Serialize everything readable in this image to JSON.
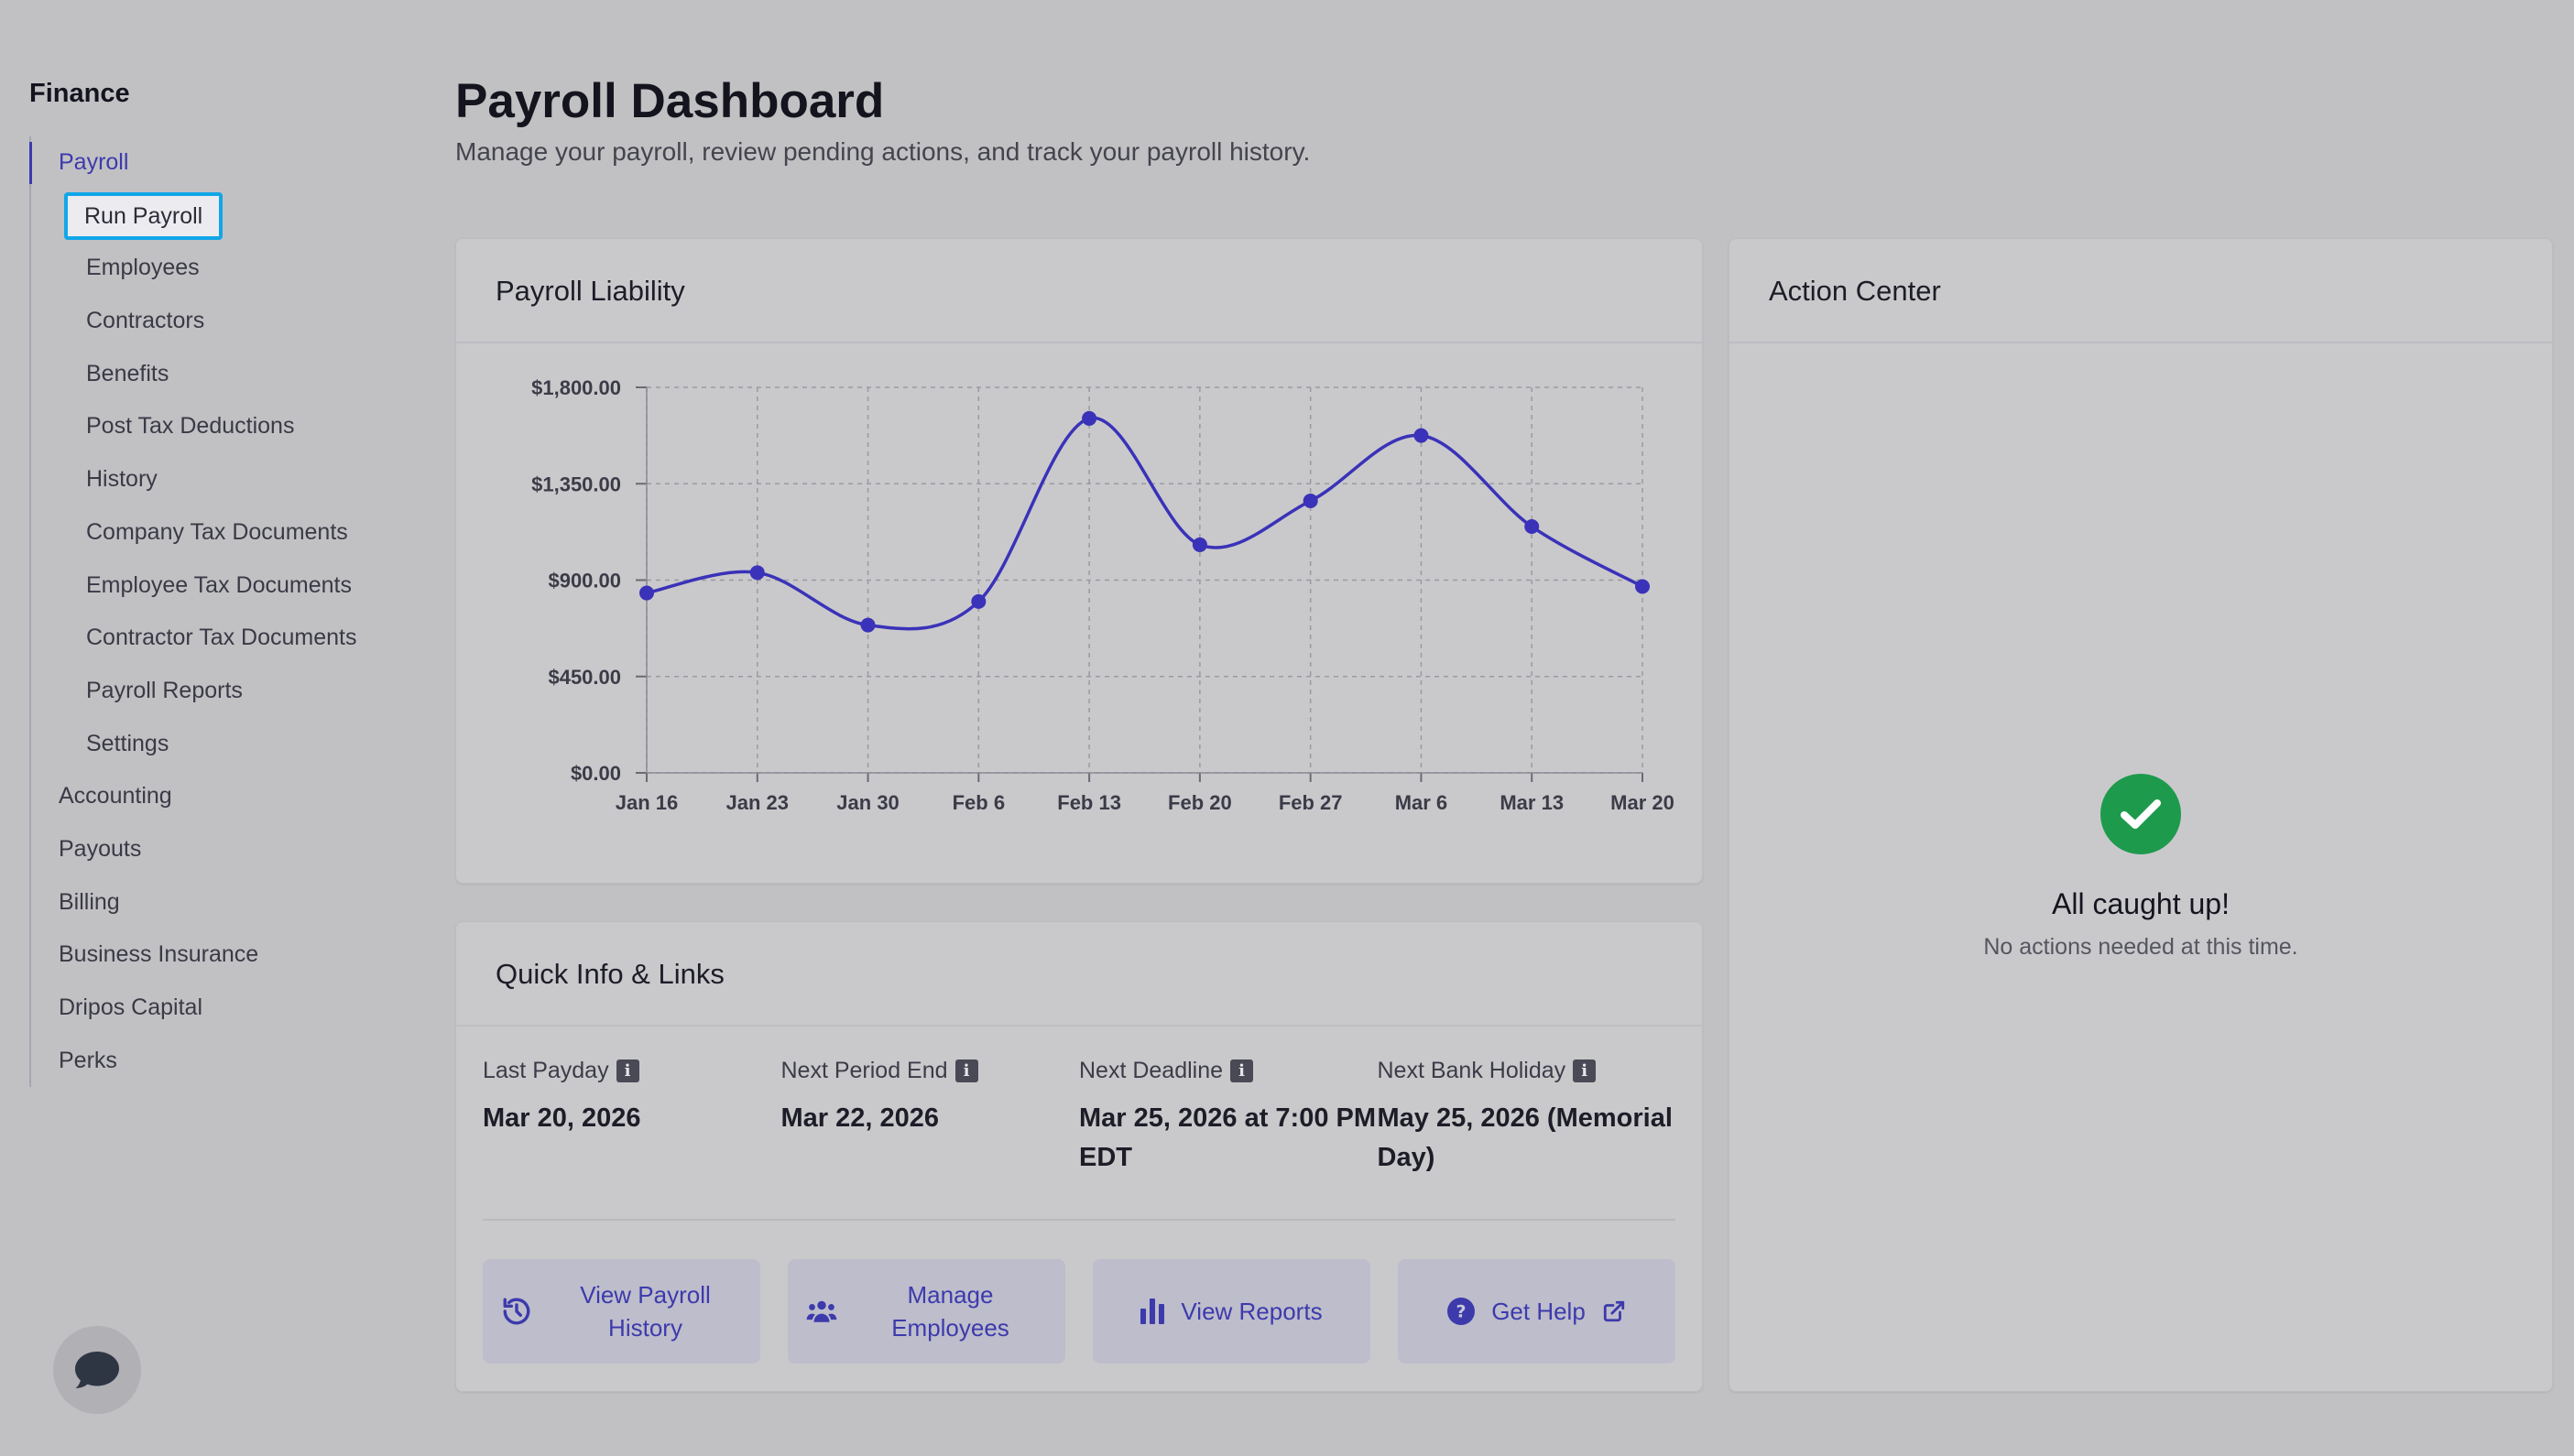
{
  "sidebar": {
    "title": "Finance",
    "section_payroll": "Payroll",
    "payroll_items": [
      "Run Payroll",
      "Employees",
      "Contractors",
      "Benefits",
      "Post Tax Deductions",
      "History",
      "Company Tax Documents",
      "Employee Tax Documents",
      "Contractor Tax Documents",
      "Payroll Reports",
      "Settings"
    ],
    "sections": [
      "Accounting",
      "Payouts",
      "Billing",
      "Business Insurance",
      "Dripos Capital",
      "Perks"
    ]
  },
  "header": {
    "title": "Payroll Dashboard",
    "subtitle": "Manage your payroll, review pending actions, and track your payroll history."
  },
  "liability_card": {
    "title": "Payroll Liability"
  },
  "chart_data": {
    "type": "line",
    "title": "Payroll Liability",
    "categories": [
      "Jan 16",
      "Jan 23",
      "Jan 30",
      "Feb 6",
      "Feb 13",
      "Feb 20",
      "Feb 27",
      "Mar 6",
      "Mar 13",
      "Mar 20"
    ],
    "series": [
      {
        "values": [
          840,
          935,
          690,
          800,
          1655,
          1065,
          1270,
          1575,
          1150,
          870
        ]
      }
    ],
    "y_ticks": [
      "$0.00",
      "$450.00",
      "$900.00",
      "$1,350.00",
      "$1,800.00"
    ],
    "ylim": [
      0,
      1800
    ],
    "grid": true,
    "line_color": "#3a32b8",
    "curve": "smooth"
  },
  "quick_info": {
    "title": "Quick Info & Links",
    "items": [
      {
        "label": "Last Payday",
        "value": "Mar 20, 2026"
      },
      {
        "label": "Next Period End",
        "value": "Mar 22, 2026"
      },
      {
        "label": "Next Deadline",
        "value": "Mar 25, 2026 at 7:00 PM EDT"
      },
      {
        "label": "Next Bank Holiday",
        "value": "May 25, 2026 (Memorial Day)"
      }
    ],
    "buttons": [
      {
        "label": "View Payroll History",
        "icon": "history-icon"
      },
      {
        "label": "Manage Employees",
        "icon": "users-icon"
      },
      {
        "label": "View Reports",
        "icon": "bar-chart-icon"
      },
      {
        "label": "Get Help",
        "icon": "question-circle-icon",
        "trailing_icon": "external-link-icon"
      }
    ]
  },
  "action_center": {
    "title": "Action Center",
    "status_title": "All caught up!",
    "status_subtitle": "No actions needed at this time."
  },
  "colors": {
    "accent": "#3d3aac",
    "focus_ring": "#12a6e8",
    "success": "#1e9a4c",
    "background": "#c1c1c4"
  }
}
